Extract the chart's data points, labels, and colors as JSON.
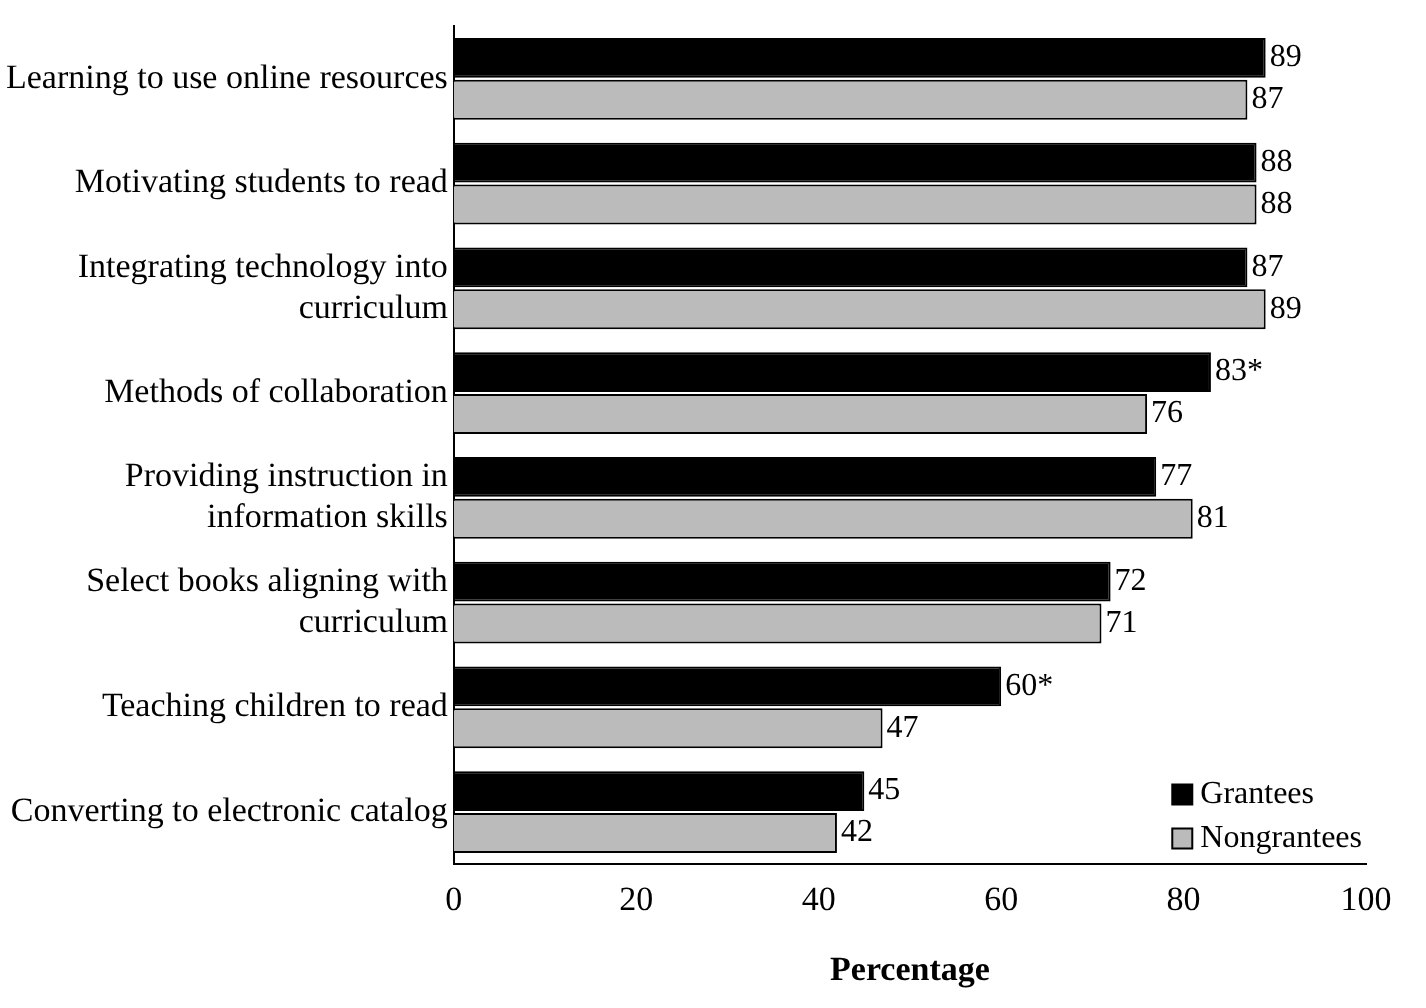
{
  "chart_data": {
    "type": "bar",
    "orientation": "horizontal",
    "xlabel": "Percentage",
    "categories": [
      "Learning to use online resources",
      "Motivating students to read",
      "Integrating technology into curriculum",
      "Methods of collaboration",
      "Providing instruction in information skills",
      "Select books aligning with curriculum",
      "Teaching children to read",
      "Converting to electronic catalog"
    ],
    "series": [
      {
        "name": "Grantees",
        "color": "#000000",
        "values": [
          89,
          88,
          87,
          83,
          77,
          72,
          60,
          45
        ],
        "value_labels": [
          "89",
          "88",
          "87",
          "83*",
          "77",
          "72",
          "60*",
          "45"
        ]
      },
      {
        "name": "Nongrantees",
        "color": "#bbbbbb",
        "values": [
          87,
          88,
          89,
          76,
          81,
          71,
          47,
          42
        ],
        "value_labels": [
          "87",
          "88",
          "89",
          "76",
          "81",
          "71",
          "47",
          "42"
        ]
      }
    ],
    "xlim": [
      0,
      100
    ],
    "xticks": [
      0,
      20,
      40,
      60,
      80,
      100
    ],
    "grid": false,
    "legend": "bottom right"
  }
}
